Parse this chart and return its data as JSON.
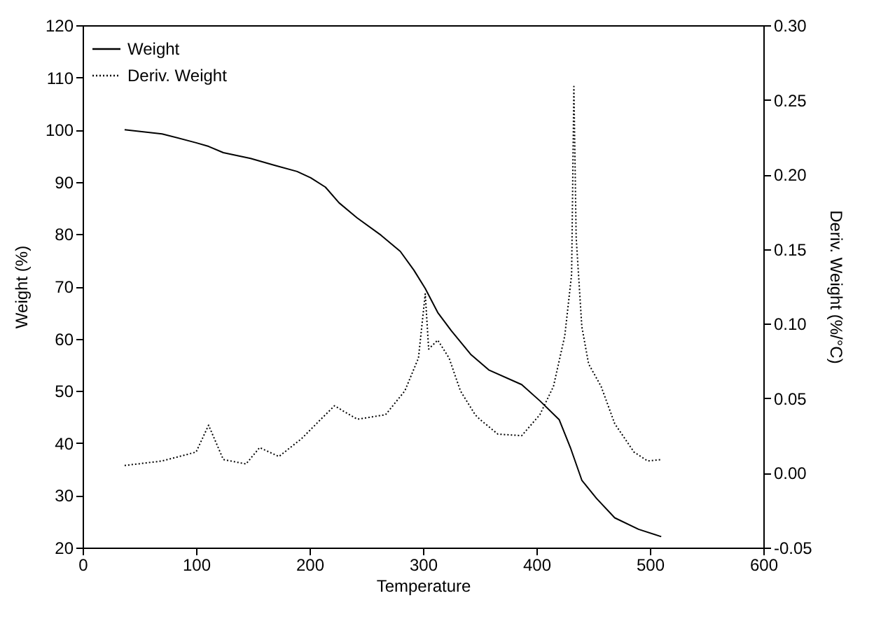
{
  "chart_data": {
    "type": "line",
    "xlabel": "Temperature",
    "ylabel": "Weight (%)",
    "y2label": "Deriv. Weight (%/°C)",
    "xlim": [
      0,
      600
    ],
    "xticks": [
      0,
      100,
      200,
      300,
      400,
      500,
      600
    ],
    "ylim": [
      20,
      120
    ],
    "yticks": [
      20,
      30,
      40,
      50,
      60,
      70,
      80,
      90,
      100,
      110,
      120
    ],
    "y2lim": [
      -0.05,
      0.3
    ],
    "y2ticks": [
      {
        "value": -0.05,
        "label": "-0.05"
      },
      {
        "value": 0,
        "label": "0.00"
      },
      {
        "value": 0.05,
        "label": "0.05"
      },
      {
        "value": 0.1,
        "label": "0.10"
      },
      {
        "value": 0.15,
        "label": "0.15"
      },
      {
        "value": 0.2,
        "label": "0.20"
      },
      {
        "value": 0.25,
        "label": "0.25"
      },
      {
        "value": 0.3,
        "label": "0.30"
      }
    ],
    "grid": false,
    "legend": "top left",
    "series": [
      {
        "name": "Weight",
        "color": "#000000",
        "line_style": "solid",
        "x": [
          37,
          70,
          100,
          111,
          124,
          148,
          169,
          189,
          201,
          214,
          226,
          242,
          263,
          280,
          292,
          302,
          313,
          325,
          342,
          358,
          387,
          403,
          420,
          430,
          440,
          453,
          469,
          490,
          510
        ],
        "values": [
          100,
          99.2,
          97.5,
          96.8,
          95.6,
          94.5,
          93.2,
          92.0,
          90.8,
          89.0,
          86.0,
          83.1,
          79.8,
          76.7,
          73.1,
          69.6,
          65.0,
          61.5,
          57.0,
          54.0,
          51.2,
          48.1,
          44.5,
          39.1,
          32.9,
          29.4,
          25.7,
          23.5,
          22.1
        ]
      },
      {
        "name": "Deriv. Weight",
        "color": "#000000",
        "line_style": "dotted",
        "axis": "y2",
        "x": [
          37,
          70,
          100,
          111,
          124,
          144,
          156,
          173,
          193,
          210,
          222,
          242,
          267,
          284,
          296,
          302,
          305,
          313,
          323,
          333,
          346,
          350,
          366,
          387,
          403,
          415,
          425,
          431,
          433,
          435,
          440,
          446,
          457,
          469,
          486,
          498,
          510
        ],
        "values": [
          0.005,
          0.008,
          0.014,
          0.032,
          0.009,
          0.006,
          0.017,
          0.011,
          0.023,
          0.036,
          0.045,
          0.036,
          0.039,
          0.055,
          0.077,
          0.12,
          0.083,
          0.089,
          0.077,
          0.055,
          0.039,
          0.036,
          0.026,
          0.025,
          0.039,
          0.058,
          0.092,
          0.133,
          0.259,
          0.158,
          0.098,
          0.073,
          0.058,
          0.033,
          0.014,
          0.008,
          0.009
        ]
      }
    ]
  }
}
